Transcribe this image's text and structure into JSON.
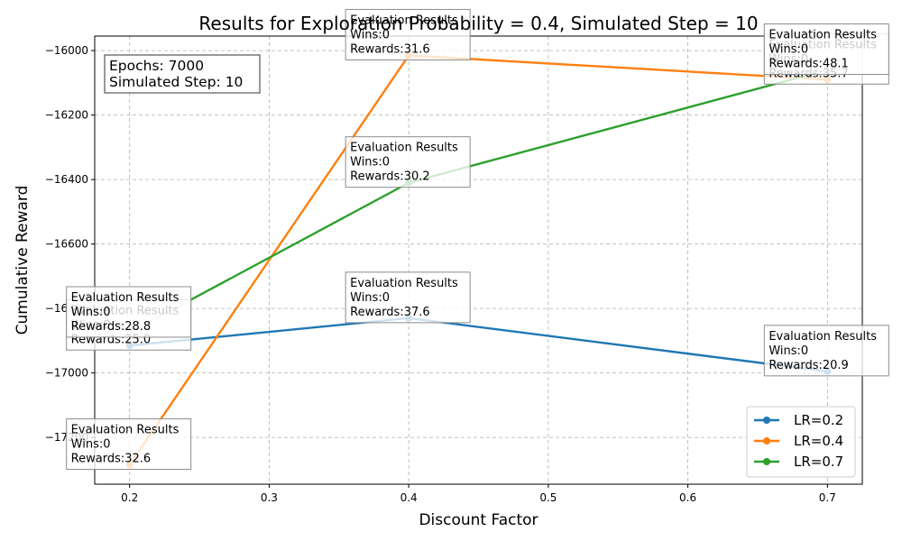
{
  "chart_data": {
    "type": "line",
    "title": "Results for Exploration Probability = 0.4, Simulated Step = 10",
    "xlabel": "Discount Factor",
    "ylabel": "Cumulative Reward",
    "x": [
      0.2,
      0.4,
      0.7
    ],
    "xlim": [
      0.175,
      0.725
    ],
    "ylim": [
      -17345,
      -15955
    ],
    "x_ticks": [
      0.2,
      0.3,
      0.4,
      0.5,
      0.6,
      0.7
    ],
    "y_ticks": [
      -17200,
      -17000,
      -16800,
      -16600,
      -16400,
      -16200,
      -16000
    ],
    "x_tick_labels": [
      "0.2",
      "0.3",
      "0.4",
      "0.5",
      "0.6",
      "0.7"
    ],
    "y_tick_labels": [
      "−17200",
      "−17000",
      "−16800",
      "−16600",
      "−16400",
      "−16200",
      "−16000"
    ],
    "grid": true,
    "legend_position": "lower-right",
    "series": [
      {
        "name": "LR=0.2",
        "color": "#1f77b4",
        "values": [
          -16915,
          -16830,
          -16995
        ],
        "annotations": [
          {
            "lines": [
              "Evaluation Results",
              "Wins:0",
              "Rewards:25.0"
            ]
          },
          {
            "lines": [
              "Evaluation Results",
              "Wins:0",
              "Rewards:37.6"
            ]
          },
          {
            "lines": [
              "Evaluation Results",
              "Wins:0",
              "Rewards:20.9"
            ]
          }
        ]
      },
      {
        "name": "LR=0.4",
        "color": "#ff7f0e",
        "values": [
          -17285,
          -16015,
          -16090
        ],
        "annotations": [
          {
            "lines": [
              "Evaluation Results",
              "Wins:0",
              "Rewards:32.6"
            ]
          },
          {
            "lines": [
              "Evaluation Results",
              "Wins:0",
              "Rewards:31.6"
            ]
          },
          {
            "lines": [
              "Evaluation Results",
              "Wins:0",
              "Rewards:35.7"
            ]
          }
        ]
      },
      {
        "name": "LR=0.7",
        "color": "#2ca02c",
        "values": [
          -16875,
          -16410,
          -16060
        ],
        "annotations": [
          {
            "lines": [
              "Evaluation Results",
              "Wins:0",
              "Rewards:28.8"
            ]
          },
          {
            "lines": [
              "Evaluation Results",
              "Wins:0",
              "Rewards:30.2"
            ]
          },
          {
            "lines": [
              "Evaluation Results",
              "Wins:0",
              "Rewards:48.1"
            ]
          }
        ]
      }
    ],
    "info_box": {
      "lines": [
        "Epochs: 7000",
        "Simulated Step: 10"
      ]
    }
  }
}
